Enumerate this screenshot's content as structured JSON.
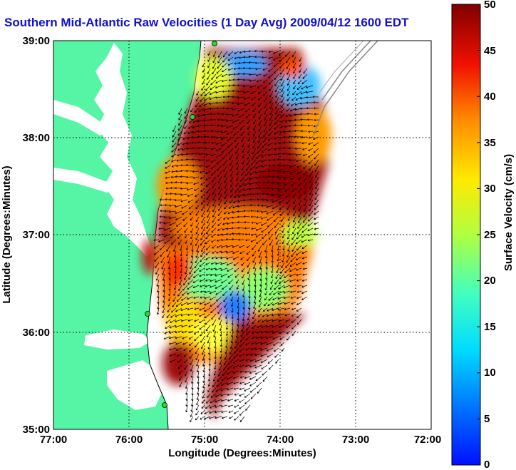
{
  "title": "Southern Mid-Atlantic Raw Velocities (1 Day Avg) 2009/04/12 1600 EDT",
  "x_axis": {
    "label": "Longitude (Degrees:Minutes)",
    "ticks": [
      "77:00",
      "76:00",
      "75:00",
      "74:00",
      "73:00",
      "72:00"
    ]
  },
  "y_axis": {
    "label": "Latitude (Degrees:Minutes)",
    "ticks": [
      "39:00",
      "38:00",
      "37:00",
      "36:00",
      "35:00"
    ]
  },
  "colorbar": {
    "label": "Surface Velocity (cm/s)",
    "ticks": [
      "50",
      "45",
      "40",
      "35",
      "30",
      "25",
      "20",
      "15",
      "10",
      "5",
      "0"
    ],
    "colormap": "jet",
    "min": 0,
    "max": 50
  },
  "colors": {
    "land": "#55f5a5",
    "title": "#1010d0",
    "grid": "#000000",
    "isobath": "#888888",
    "station": "#22dd22"
  }
}
